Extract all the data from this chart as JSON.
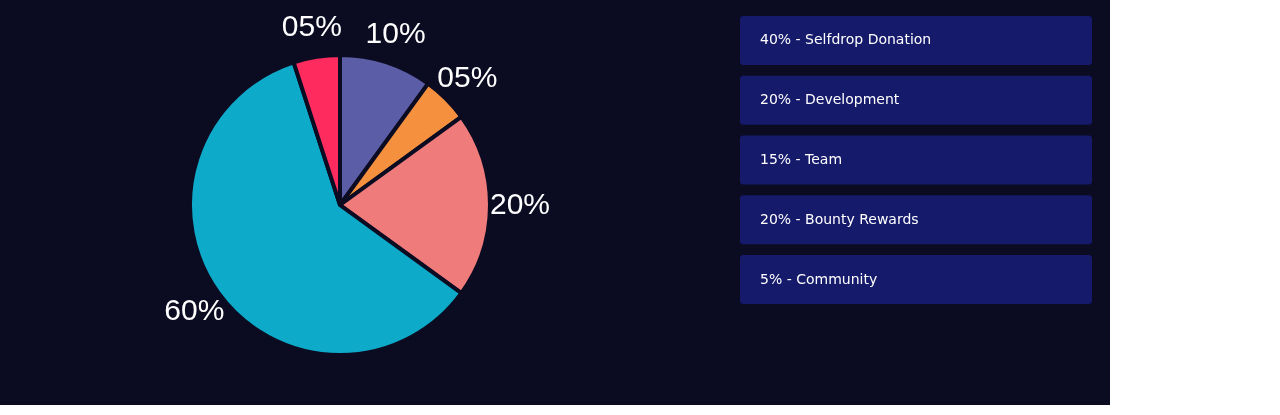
{
  "chart_data": [
    {
      "type": "pie",
      "categories": [
        null,
        null,
        null,
        null,
        null
      ],
      "values": [
        10,
        5,
        20,
        60,
        5
      ],
      "colors": [
        "#5b5ea6",
        "#f5913e",
        "#ef7b7b",
        "#0dabc9",
        "#fe2c5e"
      ],
      "value_labels": [
        "10%",
        "05%",
        "20%",
        "60%",
        "05%"
      ]
    },
    {
      "type": "other",
      "annotations": [
        "40% - Selfdrop Donation",
        "20% - Development",
        "15% - Team",
        "20% - Bounty Rewards",
        "5% - Community"
      ]
    }
  ]
}
